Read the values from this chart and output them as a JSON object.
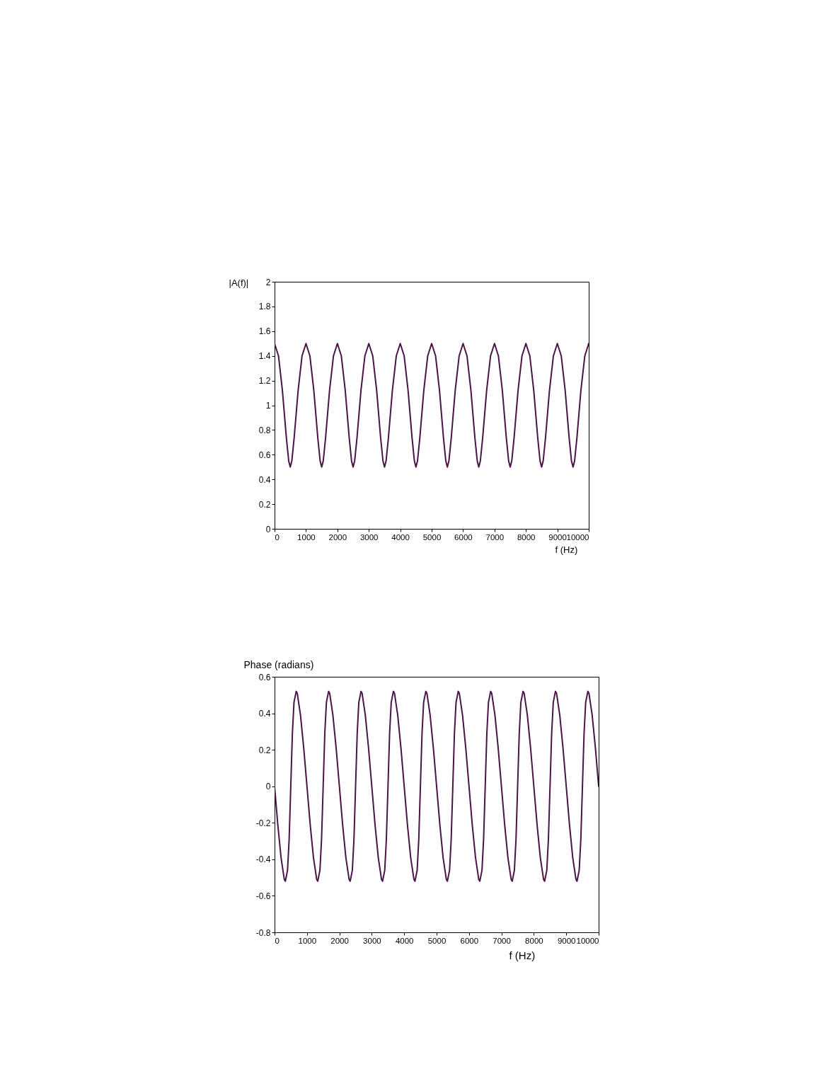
{
  "chart_data": [
    {
      "type": "line",
      "xlabel": "f (Hz)",
      "ylabel": "|A(f)|",
      "x": [
        0,
        125,
        250,
        375,
        450,
        500,
        550,
        625,
        750,
        875,
        1000,
        1125,
        1250,
        1375,
        1450,
        1500,
        1550,
        1625,
        1750,
        1875,
        2000,
        2125,
        2250,
        2375,
        2450,
        2500,
        2550,
        2625,
        2750,
        2875,
        3000,
        3125,
        3250,
        3375,
        3450,
        3500,
        3550,
        3625,
        3750,
        3875,
        4000,
        4125,
        4250,
        4375,
        4450,
        4500,
        4550,
        4625,
        4750,
        4875,
        5000,
        5125,
        5250,
        5375,
        5450,
        5500,
        5550,
        5625,
        5750,
        5875,
        6000,
        6125,
        6250,
        6375,
        6450,
        6500,
        6550,
        6625,
        6750,
        6875,
        7000,
        7125,
        7250,
        7375,
        7450,
        7500,
        7550,
        7625,
        7750,
        7875,
        8000,
        8125,
        8250,
        8375,
        8450,
        8500,
        8550,
        8625,
        8750,
        8875,
        9000,
        9125,
        9250,
        9375,
        9450,
        9500,
        9550,
        9625,
        9750,
        9875,
        10000
      ],
      "series": [
        {
          "color": "#4a1446",
          "values": [
            1.5,
            1.4,
            1.12,
            0.74,
            0.55,
            0.5,
            0.55,
            0.74,
            1.12,
            1.4,
            1.5,
            1.4,
            1.12,
            0.74,
            0.55,
            0.5,
            0.55,
            0.74,
            1.12,
            1.4,
            1.5,
            1.4,
            1.12,
            0.74,
            0.55,
            0.5,
            0.55,
            0.74,
            1.12,
            1.4,
            1.5,
            1.4,
            1.12,
            0.74,
            0.55,
            0.5,
            0.55,
            0.74,
            1.12,
            1.4,
            1.5,
            1.4,
            1.12,
            0.74,
            0.55,
            0.5,
            0.55,
            0.74,
            1.12,
            1.4,
            1.5,
            1.4,
            1.12,
            0.74,
            0.55,
            0.5,
            0.55,
            0.74,
            1.12,
            1.4,
            1.5,
            1.4,
            1.12,
            0.74,
            0.55,
            0.5,
            0.55,
            0.74,
            1.12,
            1.4,
            1.5,
            1.4,
            1.12,
            0.74,
            0.55,
            0.5,
            0.55,
            0.74,
            1.12,
            1.4,
            1.5,
            1.4,
            1.12,
            0.74,
            0.55,
            0.5,
            0.55,
            0.74,
            1.12,
            1.4,
            1.5,
            1.4,
            1.12,
            0.74,
            0.55,
            0.5,
            0.55,
            0.74,
            1.12,
            1.4,
            1.5
          ]
        }
      ],
      "xlim": [
        0,
        10000
      ],
      "xticks": [
        0,
        1000,
        2000,
        3000,
        4000,
        5000,
        6000,
        7000,
        8000,
        9000,
        10000
      ],
      "ylim": [
        0,
        2
      ],
      "yticks": [
        0,
        0.2,
        0.4,
        0.6,
        0.8,
        1,
        1.2,
        1.4,
        1.6,
        1.8,
        2
      ],
      "line_style": "solid"
    },
    {
      "type": "line",
      "xlabel": "f (Hz)",
      "ylabel": "Phase (radians)",
      "x": [
        0,
        100,
        200,
        300,
        333,
        400,
        450,
        500,
        550,
        600,
        667,
        700,
        800,
        900,
        1000,
        1100,
        1200,
        1300,
        1333,
        1400,
        1450,
        1500,
        1550,
        1600,
        1667,
        1700,
        1800,
        1900,
        2000,
        2100,
        2200,
        2300,
        2333,
        2400,
        2450,
        2500,
        2550,
        2600,
        2667,
        2700,
        2800,
        2900,
        3000,
        3100,
        3200,
        3300,
        3333,
        3400,
        3450,
        3500,
        3550,
        3600,
        3667,
        3700,
        3800,
        3900,
        4000,
        4100,
        4200,
        4300,
        4333,
        4400,
        4450,
        4500,
        4550,
        4600,
        4667,
        4700,
        4800,
        4900,
        5000,
        5100,
        5200,
        5300,
        5333,
        5400,
        5450,
        5500,
        5550,
        5600,
        5667,
        5700,
        5800,
        5900,
        6000,
        6100,
        6200,
        6300,
        6333,
        6400,
        6450,
        6500,
        6550,
        6600,
        6667,
        6700,
        6800,
        6900,
        7000,
        7100,
        7200,
        7300,
        7333,
        7400,
        7450,
        7500,
        7550,
        7600,
        7667,
        7700,
        7800,
        7900,
        8000,
        8100,
        8200,
        8300,
        8333,
        8400,
        8450,
        8500,
        8550,
        8600,
        8667,
        8700,
        8800,
        8900,
        9000,
        9100,
        9200,
        9300,
        9333,
        9400,
        9450,
        9500,
        9550,
        9600,
        9667,
        9700,
        9800,
        9900,
        10000
      ],
      "series": [
        {
          "color": "#4a1446",
          "values": [
            0,
            -0.21,
            -0.39,
            -0.51,
            -0.52,
            -0.46,
            -0.29,
            0,
            0.29,
            0.46,
            0.52,
            0.51,
            0.39,
            0.21,
            0,
            -0.21,
            -0.39,
            -0.51,
            -0.52,
            -0.46,
            -0.29,
            0,
            0.29,
            0.46,
            0.52,
            0.51,
            0.39,
            0.21,
            0,
            -0.21,
            -0.39,
            -0.51,
            -0.52,
            -0.46,
            -0.29,
            0,
            0.29,
            0.46,
            0.52,
            0.51,
            0.39,
            0.21,
            0,
            -0.21,
            -0.39,
            -0.51,
            -0.52,
            -0.46,
            -0.29,
            0,
            0.29,
            0.46,
            0.52,
            0.51,
            0.39,
            0.21,
            0,
            -0.21,
            -0.39,
            -0.51,
            -0.52,
            -0.46,
            -0.29,
            0,
            0.29,
            0.46,
            0.52,
            0.51,
            0.39,
            0.21,
            0,
            -0.21,
            -0.39,
            -0.51,
            -0.52,
            -0.46,
            -0.29,
            0,
            0.29,
            0.46,
            0.52,
            0.51,
            0.39,
            0.21,
            0,
            -0.21,
            -0.39,
            -0.51,
            -0.52,
            -0.46,
            -0.29,
            0,
            0.29,
            0.46,
            0.52,
            0.51,
            0.39,
            0.21,
            0,
            -0.21,
            -0.39,
            -0.51,
            -0.52,
            -0.46,
            -0.29,
            0,
            0.29,
            0.46,
            0.52,
            0.51,
            0.39,
            0.21,
            0,
            -0.21,
            -0.39,
            -0.51,
            -0.52,
            -0.46,
            -0.29,
            0,
            0.29,
            0.46,
            0.52,
            0.51,
            0.39,
            0.21,
            0,
            -0.21,
            -0.39,
            -0.51,
            -0.52,
            -0.46,
            -0.29,
            0,
            0.29,
            0.46,
            0.52,
            0.51,
            0.39,
            0.21,
            0
          ]
        }
      ],
      "xlim": [
        0,
        10000
      ],
      "xticks": [
        0,
        1000,
        2000,
        3000,
        4000,
        5000,
        6000,
        7000,
        8000,
        9000,
        10000
      ],
      "ylim": [
        -0.8,
        0.6
      ],
      "yticks": [
        -0.8,
        -0.6,
        -0.4,
        -0.2,
        0,
        0.2,
        0.4,
        0.6
      ],
      "line_style": "solid"
    }
  ]
}
